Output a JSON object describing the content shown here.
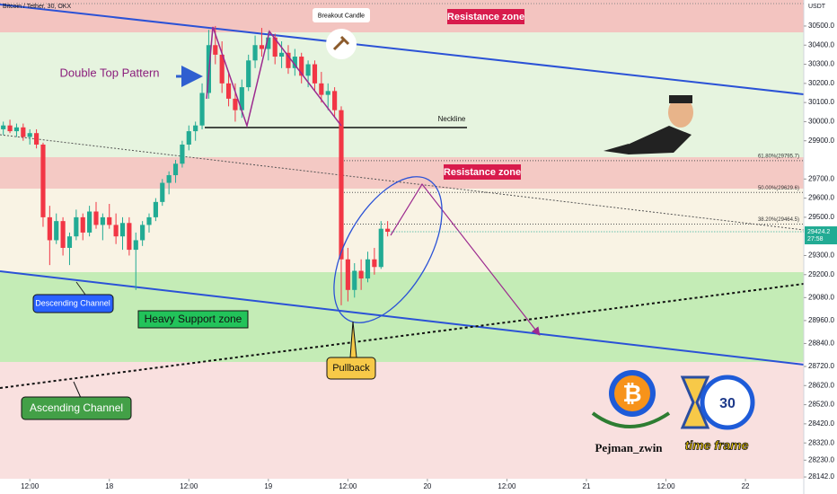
{
  "chart_data": {
    "type": "candlestick",
    "title": "Bitcoin / Tether, 30, OKX",
    "y_axis_label": "USDT",
    "up_color": "#22ab94",
    "down_color": "#f23645",
    "ylim": [
      28100,
      30636
    ],
    "xlim": [
      0,
      121.3
    ],
    "yticks": [
      {
        "value": 30500,
        "label": "30500.0"
      },
      {
        "value": 30400,
        "label": "30400.0"
      },
      {
        "value": 30300,
        "label": "30300.0"
      },
      {
        "value": 30200,
        "label": "30200.0"
      },
      {
        "value": 30100,
        "label": "30100.0"
      },
      {
        "value": 30000,
        "label": "30000.0"
      },
      {
        "value": 29900,
        "label": "29900.0"
      },
      {
        "value": 29700,
        "label": "29700.0"
      },
      {
        "value": 29600,
        "label": "29600.0"
      },
      {
        "value": 29500,
        "label": "29500.0"
      },
      {
        "value": 29300,
        "label": "29300.0"
      },
      {
        "value": 29200,
        "label": "29200.0"
      },
      {
        "value": 29080,
        "label": "29080.0"
      },
      {
        "value": 28960,
        "label": "28960.0"
      },
      {
        "value": 28840,
        "label": "28840.0"
      },
      {
        "value": 28720,
        "label": "28720.0"
      },
      {
        "value": 28620,
        "label": "28620.0"
      },
      {
        "value": 28520,
        "label": "28520.0"
      },
      {
        "value": 28420,
        "label": "28420.0"
      },
      {
        "value": 28320,
        "label": "28320.0"
      },
      {
        "value": 28230,
        "label": "28230.0"
      },
      {
        "value": 28142,
        "label": "28142.0"
      }
    ],
    "xticks": [
      {
        "value": 4.5,
        "label": "12:00"
      },
      {
        "value": 16.5,
        "label": "18"
      },
      {
        "value": 28.5,
        "label": "12:00"
      },
      {
        "value": 40.5,
        "label": "19"
      },
      {
        "value": 52.5,
        "label": "12:00"
      },
      {
        "value": 64.5,
        "label": "20"
      },
      {
        "value": 76.5,
        "label": "12:00"
      },
      {
        "value": 88.5,
        "label": "21"
      },
      {
        "value": 100.5,
        "label": "12:00"
      },
      {
        "value": 112.5,
        "label": "22"
      }
    ],
    "last_price": 29424.2,
    "countdown": "27:58",
    "fib_levels": [
      {
        "label": "61.80%(29795.7)",
        "value": 29795.7
      },
      {
        "label": "50.00%(29629.6)",
        "value": 29629.6
      },
      {
        "label": "38.20%(29464.5)",
        "value": 29464.5
      }
    ],
    "candles": [
      [
        29960,
        30000,
        29930,
        29980
      ],
      [
        29980,
        30010,
        29940,
        29950
      ],
      [
        29950,
        29990,
        29920,
        29970
      ],
      [
        29970,
        29990,
        29900,
        29920
      ],
      [
        29920,
        29960,
        29880,
        29940
      ],
      [
        29940,
        29960,
        29860,
        29880
      ],
      [
        29880,
        29890,
        29450,
        29500
      ],
      [
        29500,
        29560,
        29250,
        29380
      ],
      [
        29380,
        29520,
        29360,
        29480
      ],
      [
        29480,
        29500,
        29300,
        29340
      ],
      [
        29340,
        29420,
        29250,
        29400
      ],
      [
        29400,
        29540,
        29380,
        29500
      ],
      [
        29500,
        29520,
        29380,
        29420
      ],
      [
        29420,
        29560,
        29400,
        29530
      ],
      [
        29530,
        29580,
        29440,
        29460
      ],
      [
        29460,
        29520,
        29380,
        29500
      ],
      [
        29500,
        29570,
        29440,
        29460
      ],
      [
        29460,
        29520,
        29360,
        29400
      ],
      [
        29400,
        29500,
        29330,
        29470
      ],
      [
        29470,
        29500,
        29300,
        29330
      ],
      [
        29330,
        29420,
        29120,
        29380
      ],
      [
        29380,
        29480,
        29350,
        29460
      ],
      [
        29460,
        29520,
        29420,
        29500
      ],
      [
        29500,
        29600,
        29480,
        29580
      ],
      [
        29580,
        29700,
        29560,
        29680
      ],
      [
        29680,
        29740,
        29620,
        29720
      ],
      [
        29720,
        29800,
        29680,
        29780
      ],
      [
        29780,
        29900,
        29760,
        29880
      ],
      [
        29880,
        29980,
        29850,
        29950
      ],
      [
        29950,
        30000,
        29900,
        29980
      ],
      [
        29980,
        30200,
        29960,
        30150
      ],
      [
        30150,
        30480,
        30120,
        30400
      ],
      [
        30400,
        30500,
        30300,
        30350
      ],
      [
        30350,
        30420,
        30150,
        30200
      ],
      [
        30200,
        30260,
        30080,
        30120
      ],
      [
        30120,
        30200,
        30000,
        30060
      ],
      [
        30060,
        30220,
        30020,
        30180
      ],
      [
        30180,
        30350,
        30160,
        30320
      ],
      [
        30320,
        30450,
        30280,
        30400
      ],
      [
        30400,
        30490,
        30340,
        30380
      ],
      [
        30380,
        30470,
        30320,
        30440
      ],
      [
        30440,
        30460,
        30300,
        30340
      ],
      [
        30340,
        30420,
        30280,
        30360
      ],
      [
        30360,
        30400,
        30250,
        30280
      ],
      [
        30280,
        30380,
        30240,
        30340
      ],
      [
        30340,
        30360,
        30200,
        30240
      ],
      [
        30240,
        30320,
        30180,
        30300
      ],
      [
        30300,
        30320,
        30160,
        30200
      ],
      [
        30200,
        30260,
        30100,
        30140
      ],
      [
        30140,
        30200,
        30060,
        30160
      ],
      [
        30160,
        30180,
        30020,
        30060
      ],
      [
        30060,
        30080,
        29040,
        29280
      ],
      [
        29280,
        29340,
        29060,
        29120
      ],
      [
        29120,
        29260,
        29080,
        29220
      ],
      [
        29220,
        29280,
        29120,
        29180
      ],
      [
        29180,
        29320,
        29160,
        29280
      ],
      [
        29280,
        29340,
        29200,
        29240
      ],
      [
        29240,
        29480,
        29230,
        29440
      ],
      [
        29440,
        29480,
        29400,
        29424.2
      ]
    ],
    "annotations": {
      "breakout": "Breakout Candle",
      "resistance_top": "Resistance zone",
      "double_top": "Double Top Pattern",
      "neckline": "Neckline",
      "resistance_mid": "Resistance zone",
      "descending": "Descending Channel",
      "support": "Heavy Support zone",
      "pullback": "Pullback",
      "ascending": "Ascending Channel",
      "author": "Pejman_zwin",
      "timeframe": "time frame",
      "clock": "30"
    }
  }
}
